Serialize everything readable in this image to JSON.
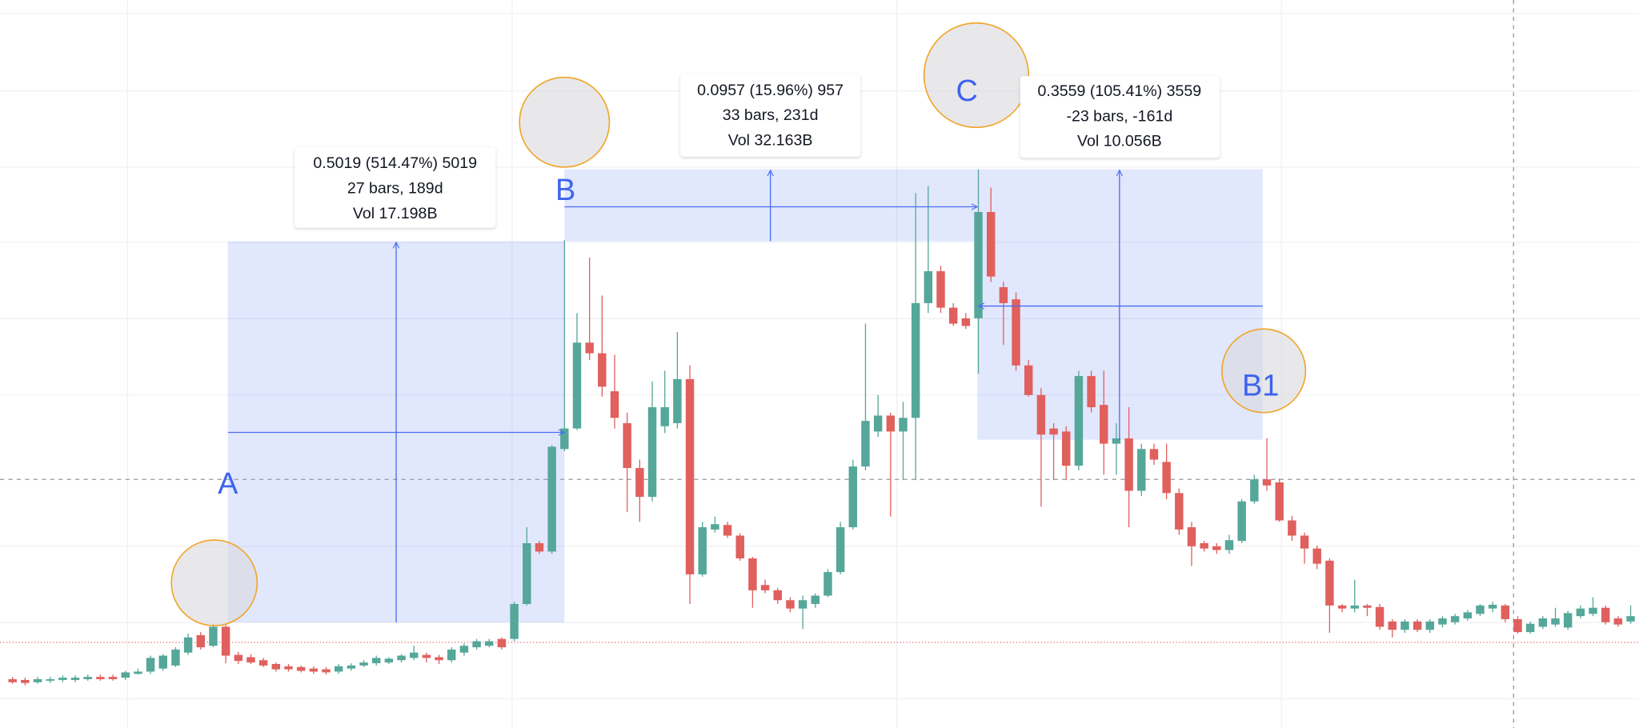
{
  "chart_data": {
    "type": "candlestick",
    "up_color": "#55a799",
    "down_color": "#e0605e",
    "ylim": [
      0,
      0.917
    ],
    "open": [
      0.023,
      0.022,
      0.019,
      0.021,
      0.022,
      0.022,
      0.023,
      0.026,
      0.026,
      0.025,
      0.03,
      0.033,
      0.037,
      0.041,
      0.058,
      0.081,
      0.067,
      0.092,
      0.055,
      0.052,
      0.048,
      0.043,
      0.04,
      0.039,
      0.037,
      0.036,
      0.033,
      0.037,
      0.041,
      0.044,
      0.045,
      0.048,
      0.051,
      0.055,
      0.052,
      0.048,
      0.058,
      0.065,
      0.067,
      0.076,
      0.076,
      0.122,
      0.202,
      0.191,
      0.326,
      0.353,
      0.466,
      0.452,
      0.402,
      0.36,
      0.301,
      0.263,
      0.356,
      0.36,
      0.418,
      0.161,
      0.22,
      0.226,
      0.212,
      0.182,
      0.147,
      0.14,
      0.127,
      0.116,
      0.122,
      0.133,
      0.164,
      0.223,
      0.303,
      0.349,
      0.37,
      0.349,
      0.367,
      0.518,
      0.56,
      0.512,
      0.498,
      0.498,
      0.638,
      0.539,
      0.523,
      0.436,
      0.397,
      0.353,
      0.349,
      0.304,
      0.422,
      0.384,
      0.333,
      0.34,
      0.271,
      0.326,
      0.309,
      0.268,
      0.223,
      0.202,
      0.198,
      0.193,
      0.205,
      0.257,
      0.286,
      0.282,
      0.232,
      0.212,
      0.195,
      0.179,
      0.12,
      0.116,
      0.12,
      0.118,
      0.099,
      0.088,
      0.099,
      0.088,
      0.095,
      0.098,
      0.103,
      0.109,
      0.116,
      0.12,
      0.102,
      0.085,
      0.092,
      0.095,
      0.091,
      0.106,
      0.109,
      0.117,
      0.103,
      0.099
    ],
    "high": [
      0.026,
      0.025,
      0.026,
      0.026,
      0.028,
      0.028,
      0.029,
      0.029,
      0.029,
      0.034,
      0.037,
      0.054,
      0.056,
      0.065,
      0.083,
      0.085,
      0.096,
      0.096,
      0.059,
      0.056,
      0.051,
      0.045,
      0.043,
      0.041,
      0.04,
      0.039,
      0.043,
      0.044,
      0.048,
      0.054,
      0.052,
      0.056,
      0.067,
      0.058,
      0.055,
      0.065,
      0.07,
      0.076,
      0.076,
      0.078,
      0.125,
      0.223,
      0.205,
      0.331,
      0.601,
      0.505,
      0.578,
      0.528,
      0.45,
      0.374,
      0.312,
      0.415,
      0.429,
      0.48,
      0.436,
      0.23,
      0.237,
      0.23,
      0.215,
      0.184,
      0.154,
      0.143,
      0.131,
      0.133,
      0.136,
      0.168,
      0.23,
      0.312,
      0.491,
      0.397,
      0.374,
      0.388,
      0.663,
      0.672,
      0.567,
      0.518,
      0.505,
      0.694,
      0.67,
      0.546,
      0.532,
      0.443,
      0.406,
      0.36,
      0.356,
      0.429,
      0.429,
      0.429,
      0.36,
      0.381,
      0.333,
      0.333,
      0.333,
      0.274,
      0.23,
      0.205,
      0.202,
      0.213,
      0.26,
      0.292,
      0.34,
      0.287,
      0.238,
      0.216,
      0.199,
      0.182,
      0.122,
      0.154,
      0.122,
      0.122,
      0.102,
      0.102,
      0.102,
      0.102,
      0.106,
      0.109,
      0.114,
      0.122,
      0.125,
      0.122,
      0.106,
      0.099,
      0.106,
      0.117,
      0.113,
      0.12,
      0.131,
      0.12,
      0.106,
      0.12
    ],
    "low": [
      0.017,
      0.015,
      0.017,
      0.018,
      0.019,
      0.019,
      0.021,
      0.021,
      0.021,
      0.022,
      0.029,
      0.03,
      0.034,
      0.039,
      0.055,
      0.062,
      0.065,
      0.044,
      0.043,
      0.043,
      0.039,
      0.033,
      0.033,
      0.032,
      0.03,
      0.029,
      0.03,
      0.034,
      0.039,
      0.041,
      0.043,
      0.045,
      0.048,
      0.045,
      0.043,
      0.045,
      0.054,
      0.062,
      0.065,
      0.062,
      0.073,
      0.12,
      0.188,
      0.188,
      0.323,
      0.351,
      0.443,
      0.395,
      0.353,
      0.243,
      0.23,
      0.257,
      0.347,
      0.353,
      0.122,
      0.158,
      0.216,
      0.209,
      0.179,
      0.117,
      0.136,
      0.122,
      0.111,
      0.089,
      0.117,
      0.131,
      0.161,
      0.22,
      0.298,
      0.342,
      0.237,
      0.285,
      0.285,
      0.505,
      0.505,
      0.488,
      0.484,
      0.425,
      0.546,
      0.463,
      0.429,
      0.395,
      0.25,
      0.285,
      0.285,
      0.298,
      0.374,
      0.292,
      0.292,
      0.223,
      0.264,
      0.305,
      0.26,
      0.213,
      0.172,
      0.191,
      0.188,
      0.188,
      0.202,
      0.254,
      0.271,
      0.23,
      0.205,
      0.175,
      0.168,
      0.084,
      0.111,
      0.111,
      0.106,
      0.088,
      0.078,
      0.084,
      0.085,
      0.084,
      0.091,
      0.095,
      0.1,
      0.106,
      0.111,
      0.098,
      0.083,
      0.083,
      0.089,
      0.092,
      0.088,
      0.103,
      0.106,
      0.095,
      0.092,
      0.096
    ],
    "close": [
      0.019,
      0.018,
      0.023,
      0.023,
      0.025,
      0.025,
      0.026,
      0.023,
      0.023,
      0.032,
      0.033,
      0.051,
      0.054,
      0.062,
      0.078,
      0.065,
      0.092,
      0.054,
      0.047,
      0.045,
      0.041,
      0.036,
      0.036,
      0.034,
      0.033,
      0.032,
      0.04,
      0.041,
      0.045,
      0.051,
      0.05,
      0.054,
      0.058,
      0.051,
      0.048,
      0.062,
      0.067,
      0.073,
      0.073,
      0.065,
      0.122,
      0.202,
      0.191,
      0.329,
      0.353,
      0.466,
      0.452,
      0.408,
      0.367,
      0.301,
      0.263,
      0.381,
      0.381,
      0.418,
      0.161,
      0.223,
      0.227,
      0.212,
      0.182,
      0.14,
      0.14,
      0.127,
      0.116,
      0.127,
      0.133,
      0.164,
      0.223,
      0.303,
      0.363,
      0.37,
      0.349,
      0.367,
      0.518,
      0.56,
      0.512,
      0.491,
      0.488,
      0.638,
      0.553,
      0.518,
      0.436,
      0.397,
      0.345,
      0.345,
      0.304,
      0.422,
      0.381,
      0.333,
      0.34,
      0.271,
      0.326,
      0.312,
      0.268,
      0.22,
      0.198,
      0.195,
      0.193,
      0.206,
      0.257,
      0.286,
      0.278,
      0.232,
      0.212,
      0.195,
      0.175,
      0.12,
      0.116,
      0.12,
      0.117,
      0.092,
      0.088,
      0.099,
      0.088,
      0.099,
      0.103,
      0.106,
      0.111,
      0.12,
      0.121,
      0.102,
      0.085,
      0.096,
      0.103,
      0.103,
      0.11,
      0.116,
      0.117,
      0.098,
      0.095,
      0.106
    ],
    "points": [
      "A",
      "B",
      "C",
      "B1"
    ],
    "measures": [
      [
        "0.5019 (514.47%) 5019",
        "27 bars, 189d",
        "Vol 17.198B"
      ],
      [
        "0.0957 (15.96%) 957",
        "33 bars, 231d",
        "Vol 32.163B"
      ],
      [
        "0.3559 (105.41%) 3559",
        "-23 bars, -161d",
        "Vol 10.056B"
      ]
    ]
  }
}
